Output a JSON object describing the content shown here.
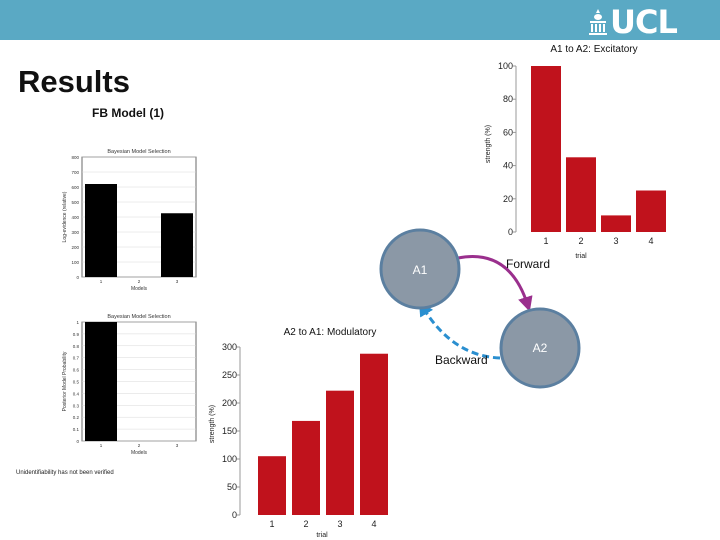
{
  "header": {
    "logo_text": "UCL",
    "colors": {
      "bar": "#5aa9c4",
      "chart_red": "#c0121c",
      "node_gray": "#8b98a6",
      "node_ring": "#5b7fa0",
      "forward_arrow": "#9a2f8d",
      "backward_arrow": "#2a8fd0"
    }
  },
  "slide": {
    "title": "Results",
    "subtitle": "FB Model (1)",
    "note": "Unidentifiability has not been verified"
  },
  "diagram": {
    "node_a1": "A1",
    "node_a2": "A2",
    "forward_label": "Forward",
    "backward_label": "Backward"
  },
  "chart_data": [
    {
      "type": "bar",
      "title": "A1 to A2: Excitatory",
      "xlabel": "trial",
      "ylabel": "strength (%)",
      "categories": [
        "1",
        "2",
        "3",
        "4"
      ],
      "values": [
        100,
        45,
        10,
        25
      ],
      "ylim": [
        0,
        100
      ],
      "yticks": [
        0,
        20,
        40,
        60,
        80,
        100
      ],
      "color": "#c0121c",
      "grid": false
    },
    {
      "type": "bar",
      "title": "A2 to A1: Modulatory",
      "xlabel": "trial",
      "ylabel": "strength (%)",
      "categories": [
        "1",
        "2",
        "3",
        "4"
      ],
      "values": [
        105,
        168,
        222,
        288
      ],
      "ylim": [
        0,
        300
      ],
      "yticks": [
        0,
        50,
        100,
        150,
        200,
        250,
        300
      ],
      "color": "#c0121c",
      "grid": false
    },
    {
      "type": "bar",
      "title": "Bayesian Model Selection",
      "xlabel": "Models",
      "ylabel": "Log-evidence (relative)",
      "categories": [
        "1",
        "2",
        "3"
      ],
      "values": [
        620,
        0,
        425
      ],
      "ylim": [
        0,
        800
      ],
      "yticks": [
        0,
        100,
        200,
        300,
        400,
        500,
        600,
        700,
        800
      ],
      "color": "#000000",
      "grid": true
    },
    {
      "type": "bar",
      "title": "Bayesian Model Selection",
      "xlabel": "Models",
      "ylabel": "Posterior Model Probability",
      "categories": [
        "1",
        "2",
        "3"
      ],
      "values": [
        1,
        0,
        0
      ],
      "ylim": [
        0,
        1
      ],
      "yticks": [
        0,
        0.1,
        0.2,
        0.3,
        0.4,
        0.5,
        0.6,
        0.7,
        0.8,
        0.9,
        1
      ],
      "color": "#000000",
      "grid": true
    }
  ]
}
